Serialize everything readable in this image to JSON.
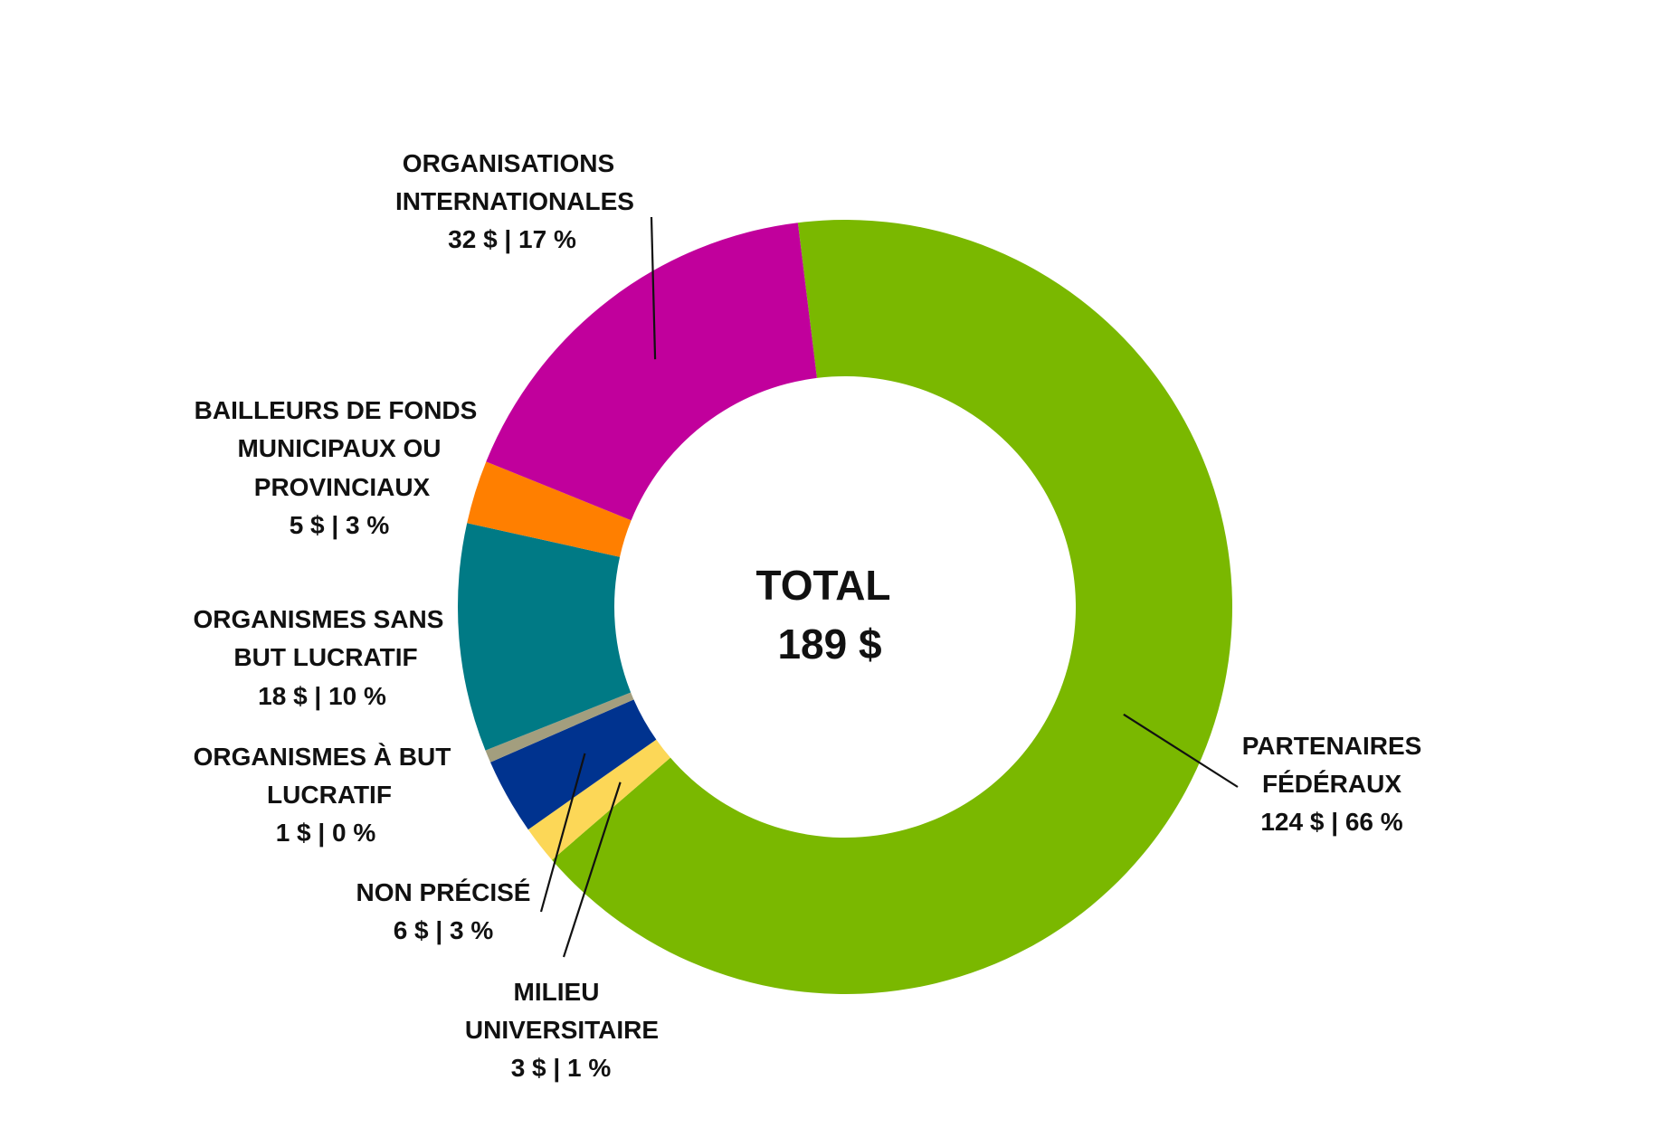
{
  "chart_data": {
    "type": "pie",
    "variant": "donut",
    "center": {
      "title": "TOTAL",
      "value": "189 $"
    },
    "total": 189,
    "slices": [
      {
        "key": "federal",
        "lines": [
          "PARTENAIRES",
          "FÉDÉRAUX"
        ],
        "value_label": "124 $ | 66 %",
        "value": 124,
        "percent": 66,
        "color": "#7AB800"
      },
      {
        "key": "intl",
        "lines": [
          "ORGANISATIONS",
          "INTERNATIONALES"
        ],
        "value_label": "32 $ | 17 %",
        "value": 32,
        "percent": 17,
        "color": "#C1009C"
      },
      {
        "key": "muni",
        "lines": [
          "BAILLEURS DE FONDS",
          "MUNICIPAUX OU",
          "PROVINCIAUX"
        ],
        "value_label": "5 $ | 3 %",
        "value": 5,
        "percent": 3,
        "color": "#FF7F00"
      },
      {
        "key": "nonprofit",
        "lines": [
          "ORGANISMES SANS",
          "BUT LUCRATIF"
        ],
        "value_label": "18 $ | 10 %",
        "value": 18,
        "percent": 10,
        "color": "#007A85"
      },
      {
        "key": "forprofit",
        "lines": [
          "ORGANISMES À BUT",
          "LUCRATIF"
        ],
        "value_label": "1 $ | 0 %",
        "value": 1,
        "percent": 0,
        "color": "#A39E7E"
      },
      {
        "key": "unspecified",
        "lines": [
          "NON PRÉCISÉ"
        ],
        "value_label": "6 $ | 3 %",
        "value": 6,
        "percent": 3,
        "color": "#00338F"
      },
      {
        "key": "academia",
        "lines": [
          "MILIEU",
          "UNIVERSITAIRE"
        ],
        "value_label": "3 $ | 1 %",
        "value": 3,
        "percent": 1,
        "color": "#FCD757"
      }
    ]
  }
}
